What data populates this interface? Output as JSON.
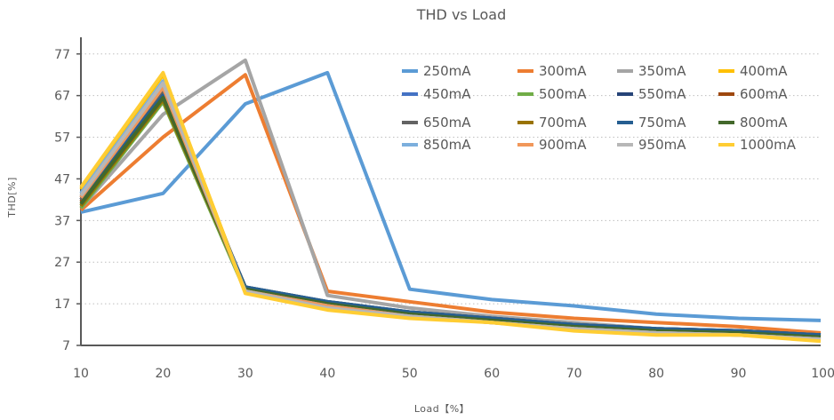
{
  "chart_data": {
    "type": "line",
    "title": "THD vs Load",
    "xlabel": "Load【%】",
    "ylabel": "THD[%]",
    "x": [
      10,
      20,
      30,
      40,
      50,
      60,
      70,
      80,
      90,
      100
    ],
    "xlim": [
      10,
      100
    ],
    "ylim": [
      7,
      81
    ],
    "x_ticks": [
      10,
      20,
      30,
      40,
      50,
      60,
      70,
      80,
      90,
      100
    ],
    "y_ticks": [
      7,
      17,
      27,
      37,
      47,
      57,
      67,
      77
    ],
    "grid": "horizontal dotted",
    "legend_position": "top-right",
    "series": [
      {
        "name": "250mA",
        "color": "#5B9BD5",
        "values": [
          39.0,
          43.5,
          65.0,
          72.5,
          20.5,
          18.0,
          16.5,
          14.5,
          13.5,
          13.0
        ]
      },
      {
        "name": "300mA",
        "color": "#ED7D31",
        "values": [
          39.5,
          57.0,
          72.0,
          20.0,
          17.5,
          15.0,
          13.5,
          12.5,
          11.5,
          10.0
        ]
      },
      {
        "name": "350mA",
        "color": "#A5A5A5",
        "values": [
          40.0,
          62.5,
          75.5,
          19.0,
          16.0,
          14.0,
          12.5,
          11.0,
          10.0,
          9.0
        ]
      },
      {
        "name": "400mA",
        "color": "#FFC000",
        "values": [
          44.5,
          72.0,
          20.0,
          16.0,
          14.0,
          12.5,
          11.0,
          10.0,
          9.5,
          8.5
        ]
      },
      {
        "name": "450mA",
        "color": "#4472C4",
        "values": [
          42.0,
          67.5,
          21.0,
          17.0,
          15.0,
          13.5,
          12.0,
          11.0,
          10.5,
          9.5
        ]
      },
      {
        "name": "500mA",
        "color": "#70AD47",
        "values": [
          40.0,
          65.5,
          20.0,
          16.5,
          14.5,
          13.0,
          11.5,
          10.5,
          10.0,
          9.0
        ]
      },
      {
        "name": "550mA",
        "color": "#264478",
        "values": [
          42.5,
          67.0,
          21.0,
          17.5,
          15.0,
          13.5,
          12.0,
          11.0,
          10.5,
          9.5
        ]
      },
      {
        "name": "600mA",
        "color": "#9E480E",
        "values": [
          41.5,
          66.5,
          20.5,
          17.0,
          14.5,
          13.0,
          11.5,
          10.5,
          10.0,
          9.0
        ]
      },
      {
        "name": "650mA",
        "color": "#636363",
        "values": [
          42.0,
          68.0,
          21.0,
          17.5,
          15.0,
          13.5,
          12.0,
          11.0,
          10.5,
          9.5
        ]
      },
      {
        "name": "700mA",
        "color": "#997300",
        "values": [
          40.5,
          66.0,
          20.5,
          17.0,
          14.5,
          13.0,
          11.5,
          10.5,
          10.0,
          9.0
        ]
      },
      {
        "name": "750mA",
        "color": "#255E91",
        "values": [
          42.5,
          67.0,
          21.0,
          17.5,
          15.0,
          13.5,
          12.0,
          11.0,
          10.5,
          9.5
        ]
      },
      {
        "name": "800mA",
        "color": "#43682B",
        "values": [
          41.0,
          66.5,
          20.5,
          17.0,
          14.5,
          13.0,
          11.5,
          10.5,
          10.0,
          9.0
        ]
      },
      {
        "name": "850mA",
        "color": "#7CAFDD",
        "values": [
          43.5,
          70.5,
          20.0,
          16.5,
          14.0,
          12.5,
          11.0,
          10.0,
          9.5,
          8.5
        ]
      },
      {
        "name": "900mA",
        "color": "#F1975A",
        "values": [
          42.5,
          69.0,
          20.0,
          16.5,
          14.0,
          12.5,
          11.0,
          10.0,
          9.5,
          8.5
        ]
      },
      {
        "name": "950mA",
        "color": "#B7B7B7",
        "values": [
          43.0,
          70.0,
          20.0,
          16.0,
          14.0,
          12.5,
          11.0,
          10.0,
          9.5,
          8.5
        ]
      },
      {
        "name": "1000mA",
        "color": "#FFCD33",
        "values": [
          45.0,
          72.5,
          19.5,
          15.5,
          13.5,
          12.5,
          10.5,
          9.5,
          9.5,
          8.0
        ]
      }
    ]
  }
}
